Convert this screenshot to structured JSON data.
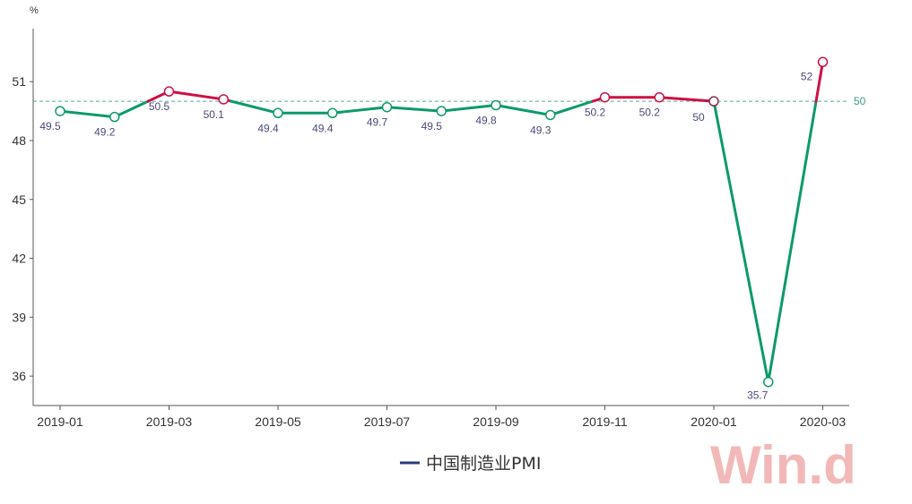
{
  "chart_data": {
    "type": "line",
    "ylabel": "%",
    "ylim": [
      34.5,
      53.7
    ],
    "yticks": [
      36,
      39,
      42,
      45,
      48,
      51
    ],
    "xtick_labels": [
      "2019-01",
      "2019-03",
      "2019-05",
      "2019-07",
      "2019-09",
      "2019-11",
      "2020-01",
      "2020-03"
    ],
    "categories": [
      "2019-01",
      "2019-02",
      "2019-03",
      "2019-04",
      "2019-05",
      "2019-06",
      "2019-07",
      "2019-08",
      "2019-09",
      "2019-10",
      "2019-11",
      "2019-12",
      "2020-01",
      "2020-02",
      "2020-03"
    ],
    "series": [
      {
        "name": "中国制造业PMI",
        "values": [
          49.5,
          49.2,
          50.5,
          50.1,
          49.4,
          49.4,
          49.7,
          49.5,
          49.8,
          49.3,
          50.2,
          50.2,
          50,
          35.7,
          52
        ],
        "data_labels": [
          "49.5",
          "49.2",
          "50.5",
          "50.1",
          "49.4",
          "49.4",
          "49.7",
          "49.5",
          "49.8",
          "49.3",
          "50.2",
          "50.2",
          "50",
          "35.7",
          "52"
        ]
      }
    ],
    "reference_line": {
      "value": 50,
      "label": "50"
    },
    "colors": {
      "above": "#cc1144",
      "below": "#0d9a6a",
      "reference": "#5aa79a",
      "legend": "#2f3b7a"
    },
    "legend_position": "bottom-center",
    "grid": false
  },
  "watermark": "Win.d"
}
